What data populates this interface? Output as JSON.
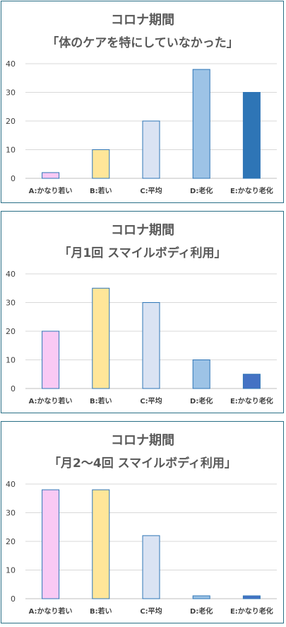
{
  "chart_data": [
    {
      "type": "bar",
      "title": "コロナ期間",
      "subtitle": "「体のケアを特にしていなかった」",
      "categories": [
        "A:かなり若い",
        "B:若い",
        "C:平均",
        "D:老化",
        "E:かなり老化"
      ],
      "values": [
        2,
        10,
        20,
        38,
        30
      ],
      "colors": [
        "#f9c9f4",
        "#ffe699",
        "#dae3f3",
        "#9dc3e6",
        "#2e75b6"
      ],
      "ylim": [
        0,
        40
      ],
      "yticks": [
        0,
        10,
        20,
        30,
        40
      ],
      "grid": true
    },
    {
      "type": "bar",
      "title": "コロナ期間",
      "subtitle": "「月1回 スマイルボディ利用」",
      "categories": [
        "A:かなり若い",
        "B:若い",
        "C:平均",
        "D:老化",
        "E:かなり老化"
      ],
      "values": [
        20,
        35,
        30,
        10,
        5
      ],
      "colors": [
        "#f9c9f4",
        "#ffe699",
        "#dae3f3",
        "#9dc3e6",
        "#4472c4"
      ],
      "ylim": [
        0,
        40
      ],
      "yticks": [
        0,
        10,
        20,
        30,
        40
      ],
      "grid": true
    },
    {
      "type": "bar",
      "title": "コロナ期間",
      "subtitle": "「月2〜4回 スマイルボディ利用」",
      "categories": [
        "A:かなり若い",
        "B:若い",
        "C:平均",
        "D:老化",
        "E:かなり老化"
      ],
      "values": [
        38,
        38,
        22,
        1,
        1
      ],
      "colors": [
        "#f9c9f4",
        "#ffe699",
        "#dae3f3",
        "#9dc3e6",
        "#4472c4"
      ],
      "ylim": [
        0,
        40
      ],
      "yticks": [
        0,
        10,
        20,
        30,
        40
      ],
      "grid": true
    }
  ]
}
